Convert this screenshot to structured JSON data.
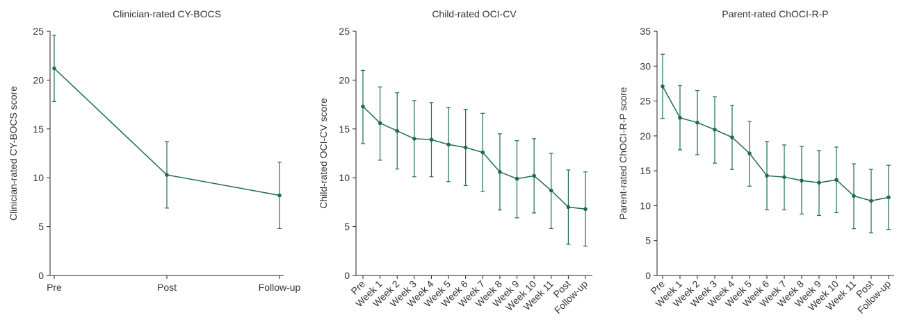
{
  "chart_data": [
    {
      "type": "line",
      "title": "Clinician-rated CY-BOCS",
      "ylabel": "Clinician-rated CY-BOCS score",
      "xlabel": "",
      "categories": [
        "Pre",
        "Post",
        "Follow-up"
      ],
      "values": [
        21.2,
        10.3,
        8.2
      ],
      "err_low": [
        17.8,
        6.9,
        4.8
      ],
      "err_high": [
        24.6,
        13.7,
        11.6
      ],
      "ylim": [
        0,
        25
      ],
      "yticks": [
        0,
        5,
        10,
        15,
        20,
        25
      ],
      "rotate_xticks": false,
      "color": "#1e6b4f"
    },
    {
      "type": "line",
      "title": "Child-rated OCI-CV",
      "ylabel": "Child-rated OCI-CV score",
      "xlabel": "",
      "categories": [
        "Pre",
        "Week 1",
        "Week 2",
        "Week 3",
        "Week 4",
        "Week 5",
        "Week 6",
        "Week 7",
        "Week 8",
        "Week 9",
        "Week 10",
        "Week 11",
        "Post",
        "Follow-up"
      ],
      "values": [
        17.3,
        15.6,
        14.8,
        14.0,
        13.9,
        13.4,
        13.1,
        12.6,
        10.6,
        9.9,
        10.2,
        8.7,
        7.0,
        6.8
      ],
      "err_low": [
        13.5,
        11.8,
        10.9,
        10.1,
        10.1,
        9.6,
        9.2,
        8.6,
        6.7,
        5.9,
        6.4,
        4.8,
        3.2,
        3.0
      ],
      "err_high": [
        21.0,
        19.3,
        18.7,
        17.9,
        17.7,
        17.2,
        17.0,
        16.6,
        14.5,
        13.8,
        14.0,
        12.5,
        10.8,
        10.6
      ],
      "ylim": [
        0,
        25
      ],
      "yticks": [
        0,
        5,
        10,
        15,
        20,
        25
      ],
      "rotate_xticks": true,
      "color": "#1e6b4f"
    },
    {
      "type": "line",
      "title": "Parent-rated ChOCI-R-P",
      "ylabel": "Parent-rated ChOCI-R-P score",
      "xlabel": "",
      "categories": [
        "Pre",
        "Week 1",
        "Week 2",
        "Week 3",
        "Week 4",
        "Week 5",
        "Week 6",
        "Week 7",
        "Week 8",
        "Week 9",
        "Week 10",
        "Week 11",
        "Post",
        "Follow-up"
      ],
      "values": [
        27.1,
        22.6,
        21.9,
        20.9,
        19.8,
        17.5,
        14.3,
        14.1,
        13.6,
        13.3,
        13.7,
        11.4,
        10.7,
        11.2
      ],
      "err_low": [
        22.5,
        18.0,
        17.3,
        16.1,
        15.2,
        12.8,
        9.4,
        9.4,
        8.8,
        8.6,
        9.0,
        6.7,
        6.1,
        6.6
      ],
      "err_high": [
        31.7,
        27.2,
        26.5,
        25.6,
        24.4,
        22.1,
        19.2,
        18.7,
        18.5,
        17.9,
        18.4,
        16.0,
        15.2,
        15.8
      ],
      "ylim": [
        0,
        35
      ],
      "yticks": [
        0,
        5,
        10,
        15,
        20,
        25,
        30,
        35
      ],
      "rotate_xticks": true,
      "color": "#1e6b4f"
    }
  ]
}
